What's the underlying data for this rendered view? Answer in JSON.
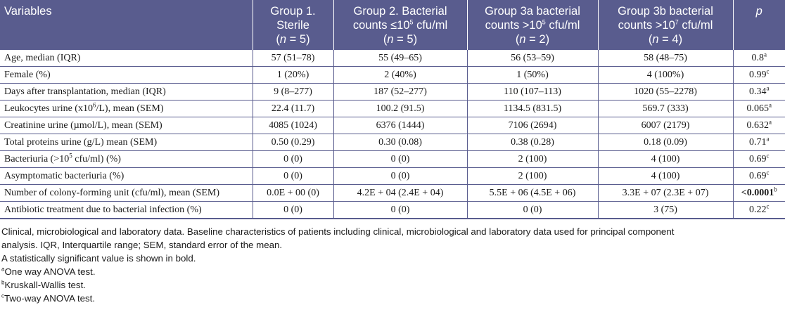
{
  "table": {
    "headers": {
      "variables": "Variables",
      "g1_line1": "Group 1.",
      "g1_line2": "Sterile",
      "g1_n": "5",
      "g2_line1": "Group 2. Bacterial",
      "g2_line2_pre": "counts ≤10",
      "g2_line2_sup": "5",
      "g2_line2_post": " cfu/ml",
      "g2_n": "5",
      "g3a_line1": "Group 3a bacterial",
      "g3a_line2_pre": "counts >10",
      "g3a_line2_sup": "5",
      "g3a_line2_post": " cfu/ml",
      "g3a_n": "2",
      "g3b_line1": "Group 3b bacterial",
      "g3b_line2_pre": "counts >10",
      "g3b_line2_sup": "7",
      "g3b_line2_post": " cfu/ml",
      "g3b_n": "4",
      "n_label": "n",
      "n_eq": " = ",
      "p": "p"
    },
    "rows": [
      {
        "var_pre": "Age, median (IQR)",
        "var_sup": "",
        "var_post": "",
        "g1": "57 (51–78)",
        "g2": "55 (49–65)",
        "g3a": "56 (53–59)",
        "g3b": "58 (48–75)",
        "p": "0.8",
        "p_sup": "a"
      },
      {
        "var_pre": "Female (%)",
        "var_sup": "",
        "var_post": "",
        "g1": "1 (20%)",
        "g2": "2 (40%)",
        "g3a": "1 (50%)",
        "g3b": "4 (100%)",
        "p": "0.99",
        "p_sup": "c"
      },
      {
        "var_pre": "Days after transplantation, median (IQR)",
        "var_sup": "",
        "var_post": "",
        "g1": "9 (8–277)",
        "g2": "187 (52–277)",
        "g3a": "110 (107–113)",
        "g3b": "1020 (55–2278)",
        "p": "0.34",
        "p_sup": "a"
      },
      {
        "var_pre": "Leukocytes urine (x10",
        "var_sup": "6",
        "var_post": "/L), mean (SEM)",
        "g1": "22.4 (11.7)",
        "g2": "100.2 (91.5)",
        "g3a": "1134.5 (831.5)",
        "g3b": "569.7 (333)",
        "p": "0.065",
        "p_sup": "a"
      },
      {
        "var_pre": "Creatinine urine (µmol/L), mean (SEM)",
        "var_sup": "",
        "var_post": "",
        "g1": "4085 (1024)",
        "g2": "6376 (1444)",
        "g3a": "7106 (2694)",
        "g3b": "6007 (2179)",
        "p": "0.632",
        "p_sup": "a"
      },
      {
        "var_pre": "Total proteins urine (g/L) mean (SEM)",
        "var_sup": "",
        "var_post": "",
        "g1": "0.50 (0.29)",
        "g2": "0.30 (0.08)",
        "g3a": "0.38 (0.28)",
        "g3b": "0.18 (0.09)",
        "p": "0.71",
        "p_sup": "a"
      },
      {
        "var_pre": "Bacteriuria (>10",
        "var_sup": "5",
        "var_post": " cfu/ml) (%)",
        "g1": "0 (0)",
        "g2": "0 (0)",
        "g3a": "2 (100)",
        "g3b": "4 (100)",
        "p": "0.69",
        "p_sup": "c"
      },
      {
        "var_pre": "Asymptomatic bacteriuria (%)",
        "var_sup": "",
        "var_post": "",
        "g1": "0 (0)",
        "g2": "0 (0)",
        "g3a": "2 (100)",
        "g3b": "4 (100)",
        "p": "0.69",
        "p_sup": "c"
      },
      {
        "var_pre": "Number of colony-forming unit (cfu/ml), mean (SEM)",
        "var_sup": "",
        "var_post": "",
        "g1": "0.0E + 00 (0)",
        "g2": "4.2E + 04 (2.4E + 04)",
        "g3a": "5.5E + 06 (4.5E + 06)",
        "g3b": "3.3E + 07 (2.3E + 07)",
        "p": "<0.0001",
        "p_sup": "b",
        "p_bold": true
      },
      {
        "var_pre": "Antibiotic treatment due to bacterial infection (%)",
        "var_sup": "",
        "var_post": "",
        "g1": "0 (0)",
        "g2": "0 (0)",
        "g3a": "0 (0)",
        "g3b": "3 (75)",
        "p": "0.22",
        "p_sup": "c"
      }
    ]
  },
  "notes": {
    "caption_line1": "Clinical, microbiological and laboratory data. Baseline characteristics of patients including clinical, microbiological and laboratory data used for principal component",
    "caption_line2": "analysis. IQR, Interquartile range; SEM, standard error of the mean.",
    "significance": "A statistically significant value is shown in bold.",
    "footnotes": [
      {
        "mark": "a",
        "text": "One way ANOVA test."
      },
      {
        "mark": "b",
        "text": "Kruskall-Wallis test."
      },
      {
        "mark": "c",
        "text": "Two-way ANOVA test."
      }
    ]
  },
  "colors": {
    "header_bg": "#595c8e",
    "header_text": "#ffffff",
    "rule": "#595c8e"
  }
}
